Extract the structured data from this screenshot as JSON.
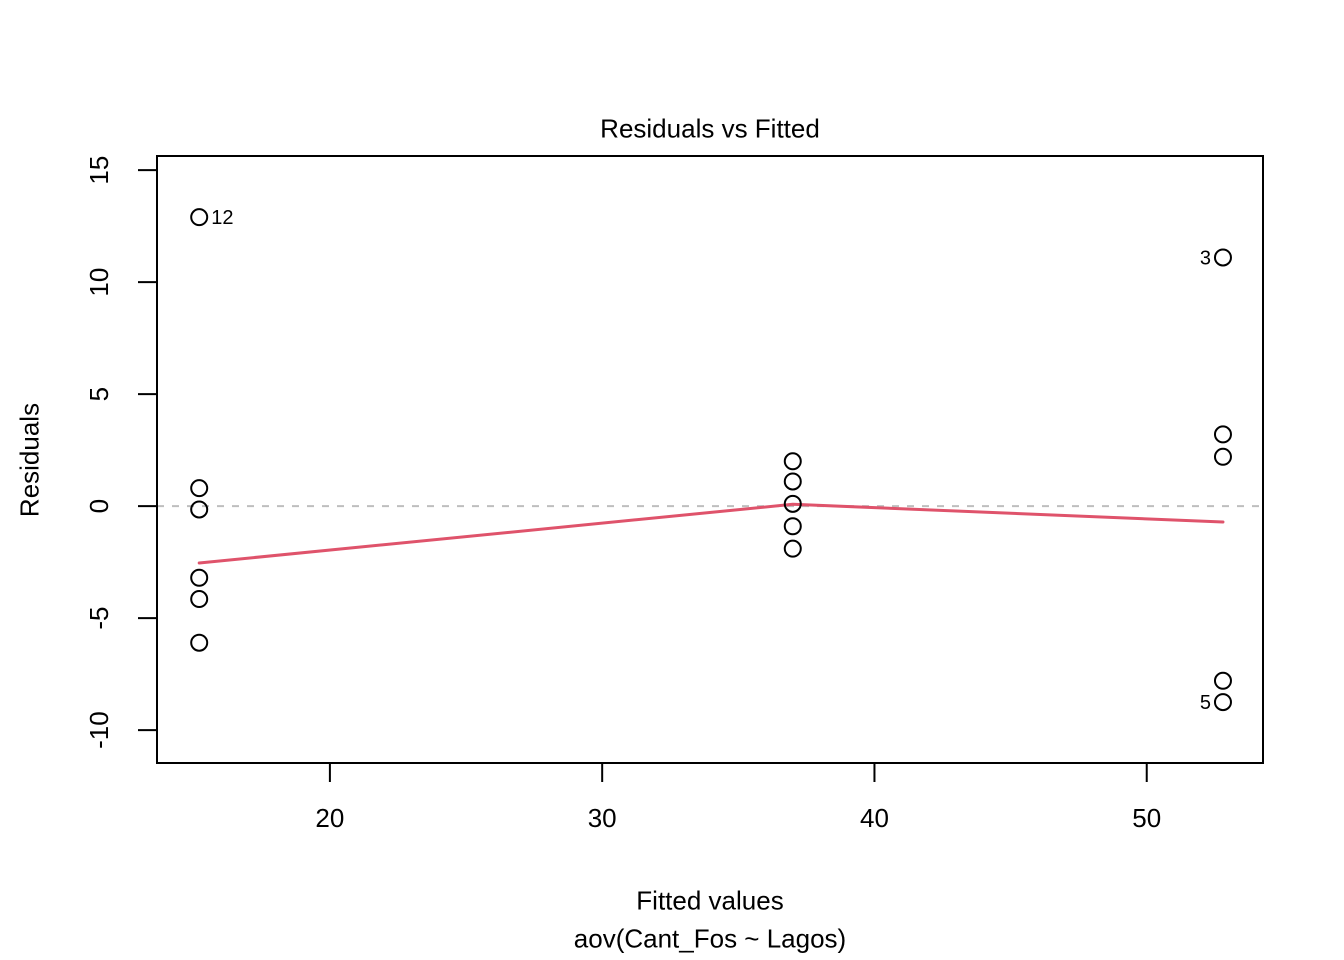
{
  "chart_data": {
    "type": "scatter",
    "title": "Residuals vs Fitted",
    "xlabel": "Fitted values",
    "model_label": "aov(Cant_Fos ~ Lagos)",
    "ylabel": "Residuals",
    "x_ticks": [
      20,
      30,
      40,
      50
    ],
    "y_ticks": [
      -10,
      -5,
      0,
      5,
      10,
      15
    ],
    "xlim": [
      13.65,
      54.27
    ],
    "ylim": [
      -11.47,
      15.63
    ],
    "legend": "none",
    "grid": false,
    "points": [
      {
        "x": 15.2,
        "y": 12.9,
        "label": "12",
        "label_pos": "right"
      },
      {
        "x": 15.2,
        "y": 0.8
      },
      {
        "x": 15.2,
        "y": -0.15
      },
      {
        "x": 15.2,
        "y": -3.2
      },
      {
        "x": 15.2,
        "y": -4.15
      },
      {
        "x": 15.2,
        "y": -6.1
      },
      {
        "x": 37.0,
        "y": 2.0
      },
      {
        "x": 37.0,
        "y": 1.1
      },
      {
        "x": 37.0,
        "y": 0.1
      },
      {
        "x": 37.0,
        "y": -0.9
      },
      {
        "x": 37.0,
        "y": -1.9
      },
      {
        "x": 52.8,
        "y": 11.1,
        "label": "3",
        "label_pos": "left"
      },
      {
        "x": 52.8,
        "y": 3.2
      },
      {
        "x": 52.8,
        "y": 2.2
      },
      {
        "x": 52.8,
        "y": -7.8
      },
      {
        "x": 52.8,
        "y": -8.75,
        "label": "5",
        "label_pos": "left"
      }
    ],
    "smooth_line": [
      {
        "x": 15.2,
        "y": -2.54
      },
      {
        "x": 37.0,
        "y": 0.08
      },
      {
        "x": 52.8,
        "y": -0.71
      }
    ],
    "zero_line_y": 0,
    "colors": {
      "points": "#000000",
      "smooth_line": "#DF536B",
      "zero_line": "#BEBEBE",
      "axis": "#000000",
      "background": "#FFFFFF"
    }
  }
}
